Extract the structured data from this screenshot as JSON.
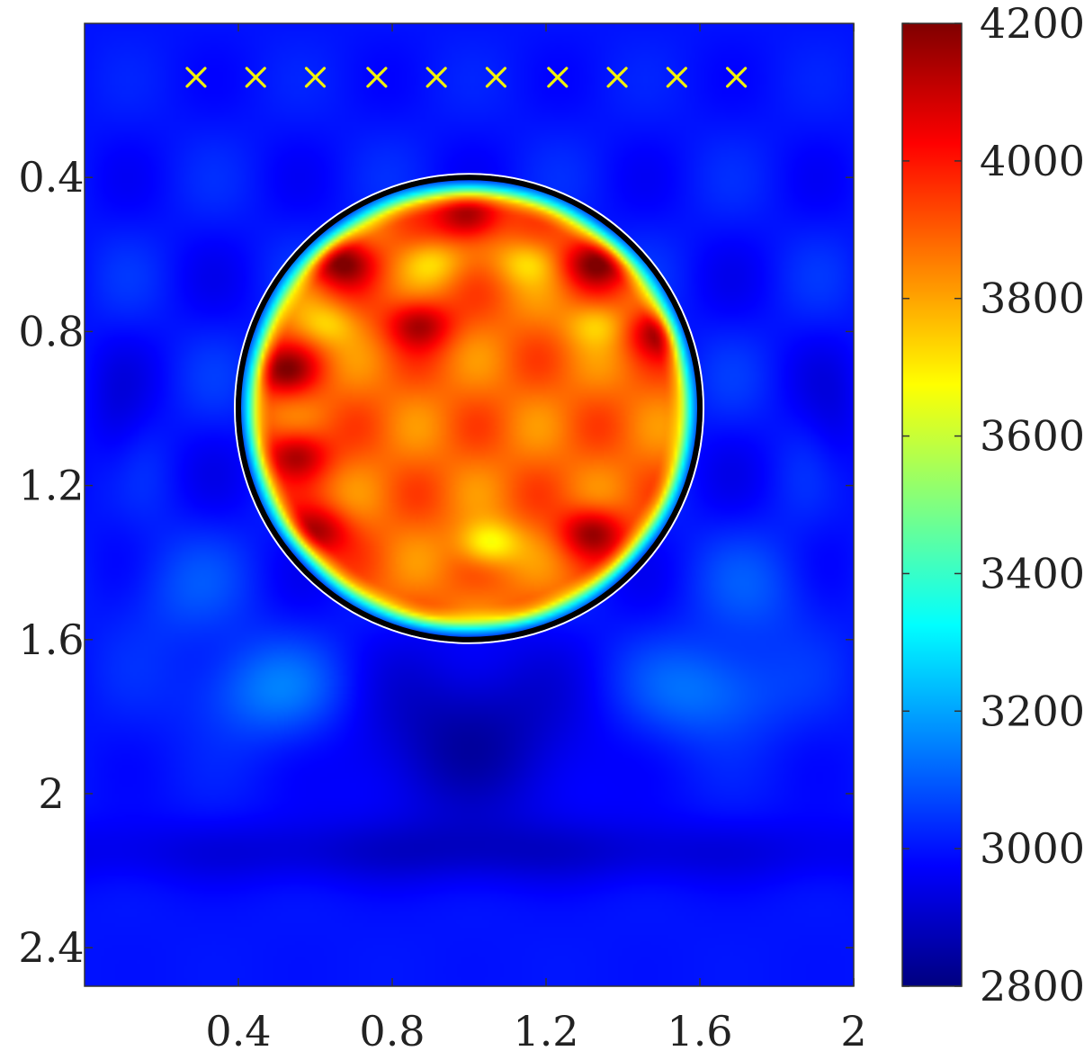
{
  "chart_data": {
    "type": "heatmap",
    "title": "",
    "xlabel": "",
    "ylabel": "",
    "xlim": [
      0.0,
      2.0
    ],
    "ylim": [
      2.5,
      0.0
    ],
    "y_axis_direction": "down",
    "x_ticks": [
      {
        "value": 0.4,
        "label": "0.4"
      },
      {
        "value": 0.8,
        "label": "0.8"
      },
      {
        "value": 1.2,
        "label": "1.2"
      },
      {
        "value": 1.6,
        "label": "1.6"
      },
      {
        "value": 2.0,
        "label": "2"
      }
    ],
    "y_ticks": [
      {
        "value": 0.4,
        "label": "0.4"
      },
      {
        "value": 0.8,
        "label": "0.8"
      },
      {
        "value": 1.2,
        "label": "1.2"
      },
      {
        "value": 1.6,
        "label": "1.6"
      },
      {
        "value": 2.0,
        "label": "2"
      },
      {
        "value": 2.4,
        "label": "2.4"
      }
    ],
    "colorbar": {
      "colormap": "jet",
      "min": 2800,
      "max": 4200,
      "ticks": [
        {
          "value": 2800,
          "label": "2800"
        },
        {
          "value": 3000,
          "label": "3000"
        },
        {
          "value": 3200,
          "label": "3200"
        },
        {
          "value": 3400,
          "label": "3400"
        },
        {
          "value": 3600,
          "label": "3600"
        },
        {
          "value": 3800,
          "label": "3800"
        },
        {
          "value": 4000,
          "label": "4000"
        },
        {
          "value": 4200,
          "label": "4200"
        }
      ]
    },
    "field": {
      "background_value": 3000,
      "inclusion": {
        "shape": "circle",
        "center_x": 1.0,
        "center_y": 1.0,
        "radius": 0.6,
        "value": 4000
      },
      "below_inclusion_low_region": {
        "center_x": 1.0,
        "center_y": 1.85,
        "value": 2850
      },
      "hot_spots": [
        {
          "x": 1.0,
          "y": 0.5,
          "value": 4200
        },
        {
          "x": 0.67,
          "y": 0.62,
          "value": 4200
        },
        {
          "x": 1.33,
          "y": 0.62,
          "value": 4200
        },
        {
          "x": 0.87,
          "y": 0.78,
          "value": 4150
        },
        {
          "x": 1.5,
          "y": 0.8,
          "value": 4150
        },
        {
          "x": 0.52,
          "y": 0.9,
          "value": 4150
        },
        {
          "x": 0.55,
          "y": 1.12,
          "value": 4150
        },
        {
          "x": 0.6,
          "y": 1.32,
          "value": 4150
        },
        {
          "x": 1.32,
          "y": 1.32,
          "value": 4150
        }
      ],
      "warm_spots": [
        {
          "x": 1.05,
          "y": 1.35,
          "value": 3750
        },
        {
          "x": 0.9,
          "y": 0.62,
          "value": 3850
        },
        {
          "x": 1.15,
          "y": 0.62,
          "value": 3850
        },
        {
          "x": 0.63,
          "y": 0.78,
          "value": 3850
        },
        {
          "x": 1.33,
          "y": 0.78,
          "value": 3850
        }
      ],
      "rim_value": 3450
    },
    "outline": {
      "shape": "circle",
      "center_x": 1.0,
      "center_y": 1.0,
      "radius": 0.6,
      "color": "#000000"
    },
    "receivers": {
      "marker": "x",
      "color": "#f2f20a",
      "y": 0.14,
      "x": [
        0.29,
        0.445,
        0.6,
        0.76,
        0.915,
        1.07,
        1.23,
        1.385,
        1.54,
        1.695
      ]
    }
  }
}
